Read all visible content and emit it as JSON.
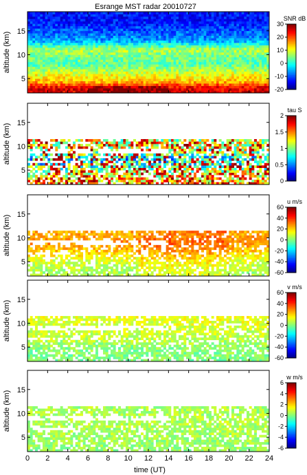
{
  "title": "Esrange MST radar 20010727",
  "xlabel": "time (UT)",
  "chart_data": {
    "type": "heatmap",
    "title": "Esrange MST radar 20010727",
    "xlabel": "time (UT)",
    "xlim": [
      0,
      24
    ],
    "x_ticks": [
      0,
      2,
      4,
      6,
      8,
      10,
      12,
      14,
      16,
      18,
      20,
      22,
      24
    ],
    "colormap": "jet",
    "panels": [
      {
        "quantity": "SNR",
        "unit": "dB",
        "cbar_label": "SNR dB",
        "ylabel": "altitude (km)",
        "ylim": [
          2,
          19
        ],
        "y_ticks": [
          5,
          10,
          15
        ],
        "clim": [
          -20,
          30
        ],
        "cbar_ticks": [
          -20,
          -10,
          0,
          10,
          20,
          30
        ],
        "pattern": "snr",
        "profile": [
          {
            "altitude": 3,
            "value": 25
          },
          {
            "altitude": 4.5,
            "value": 14
          },
          {
            "altitude": 6,
            "value": 10
          },
          {
            "altitude": 8,
            "value": 3
          },
          {
            "altitude": 10,
            "value": 5
          },
          {
            "altitude": 11,
            "value": 8
          },
          {
            "altitude": 13,
            "value": -6
          },
          {
            "altitude": 17,
            "value": -13
          }
        ]
      },
      {
        "quantity": "tau",
        "unit": "S",
        "cbar_label": "tau S",
        "ylabel": "altitude (km)",
        "ylim": [
          2,
          19
        ],
        "y_ticks": [
          5,
          10,
          15
        ],
        "clim": [
          0,
          2
        ],
        "cbar_ticks": [
          0,
          0.5,
          1,
          1.5,
          2
        ],
        "pattern": "tau",
        "profile": [
          {
            "altitude": 3,
            "value": 1.4
          },
          {
            "altitude": 5,
            "value": 1.1
          },
          {
            "altitude": 7,
            "value": 0.7
          },
          {
            "altitude": 9,
            "value": 1.1
          },
          {
            "altitude": 10.5,
            "value": 1.2
          }
        ]
      },
      {
        "quantity": "u",
        "unit": "m/s",
        "cbar_label": "u m/s",
        "ylabel": "altitude (km)",
        "ylim": [
          2,
          19
        ],
        "y_ticks": [
          5,
          10,
          15
        ],
        "clim": [
          -60,
          60
        ],
        "cbar_ticks": [
          -60,
          -40,
          -20,
          0,
          20,
          40,
          60
        ],
        "pattern": "u",
        "profile": [
          {
            "altitude": 3,
            "value": 5
          },
          {
            "altitude": 5,
            "value": 10
          },
          {
            "altitude": 7,
            "value": 20
          },
          {
            "altitude": 9,
            "value": 28
          },
          {
            "altitude": 10.5,
            "value": 25
          }
        ]
      },
      {
        "quantity": "v",
        "unit": "m/s",
        "cbar_label": "v m/s",
        "ylabel": "altitude (km)",
        "ylim": [
          2,
          19
        ],
        "y_ticks": [
          5,
          10,
          15
        ],
        "clim": [
          -60,
          60
        ],
        "cbar_ticks": [
          -60,
          -40,
          -20,
          0,
          20,
          40,
          60
        ],
        "pattern": "v",
        "profile": [
          {
            "altitude": 3,
            "value": 0
          },
          {
            "altitude": 5,
            "value": 2
          },
          {
            "altitude": 7,
            "value": 8
          },
          {
            "altitude": 9,
            "value": 10
          },
          {
            "altitude": 10.5,
            "value": 12
          }
        ]
      },
      {
        "quantity": "w",
        "unit": "m/s",
        "cbar_label": "w m/s",
        "ylabel": "altitude (km)",
        "ylim": [
          2,
          19
        ],
        "y_ticks": [
          5,
          10,
          15
        ],
        "clim": [
          -6,
          6
        ],
        "cbar_ticks": [
          -6,
          -4,
          -2,
          0,
          2,
          4,
          6
        ],
        "pattern": "w",
        "profile": [
          {
            "altitude": 3,
            "value": 0.3
          },
          {
            "altitude": 6,
            "value": 0.5
          },
          {
            "altitude": 9,
            "value": 0.6
          },
          {
            "altitude": 10.5,
            "value": 0.5
          }
        ]
      }
    ]
  }
}
